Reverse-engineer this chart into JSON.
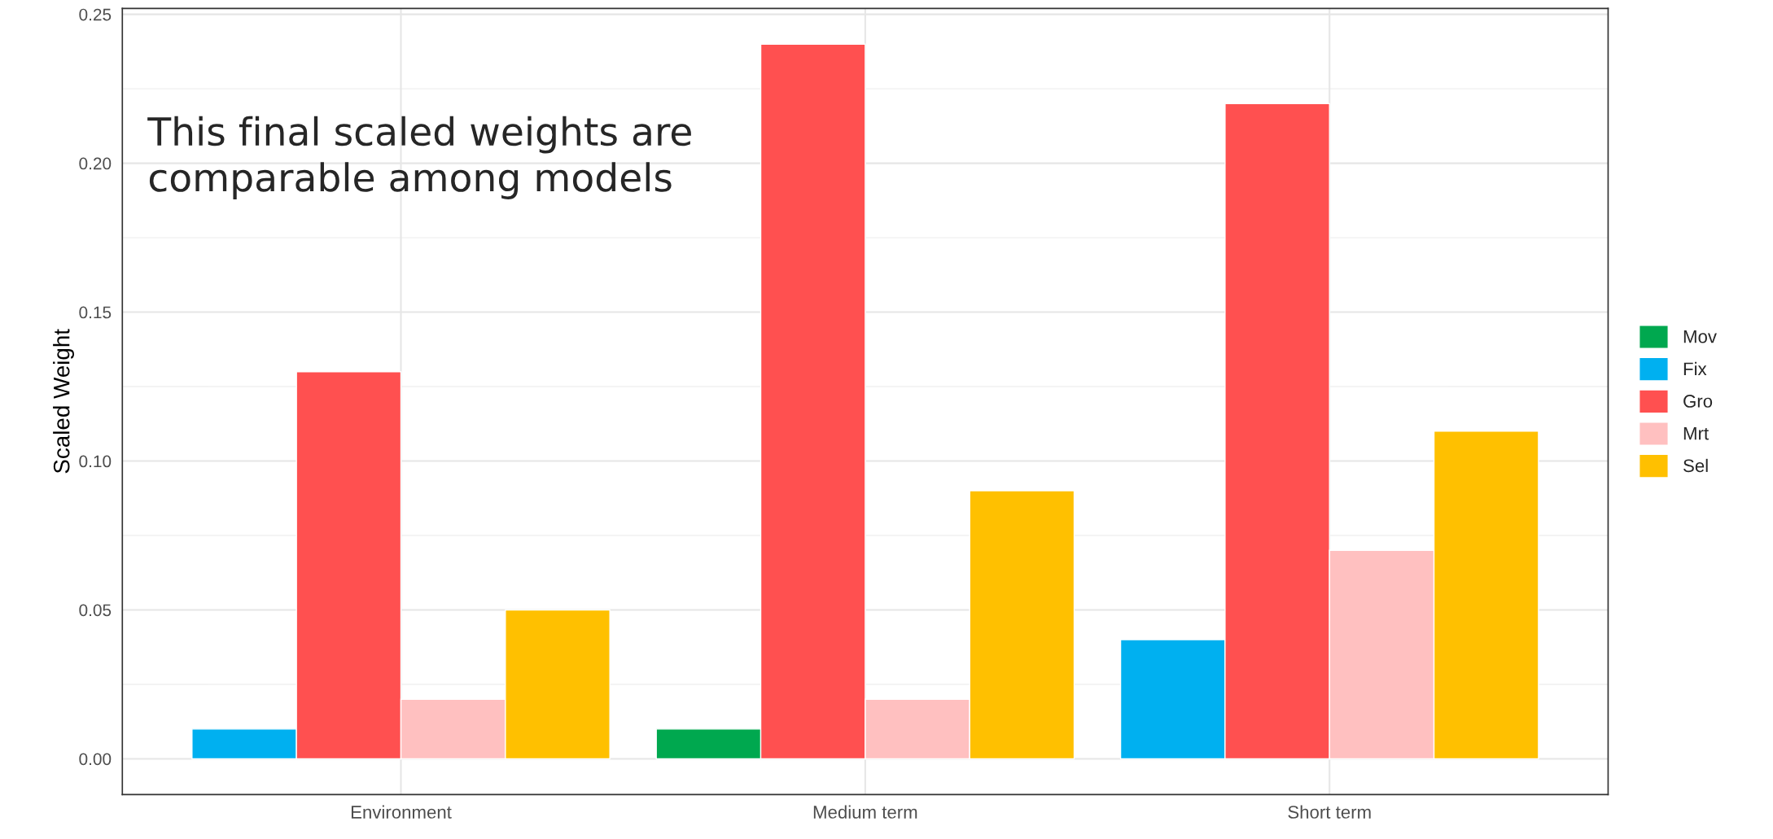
{
  "chart_data": {
    "type": "bar",
    "ylabel": "Scaled Weight",
    "categories": [
      "Environment",
      "Medium term",
      "Short term"
    ],
    "series": [
      {
        "name": "Mov",
        "color": "#00a84f",
        "values": [
          null,
          0.01,
          null
        ]
      },
      {
        "name": "Fix",
        "color": "#00b0f0",
        "values": [
          0.01,
          null,
          0.04
        ]
      },
      {
        "name": "Gro",
        "color": "#ff5050",
        "values": [
          0.13,
          0.24,
          0.22
        ]
      },
      {
        "name": "Mrt",
        "color": "#ffc0c0",
        "values": [
          0.02,
          0.02,
          0.07
        ]
      },
      {
        "name": "Sel",
        "color": "#ffc000",
        "values": [
          0.05,
          0.09,
          0.11
        ]
      }
    ],
    "ylim": [
      -0.012,
      0.252
    ],
    "yticks": [
      {
        "value": 0,
        "label": "0.00"
      },
      {
        "value": 0.05,
        "label": "0.05"
      },
      {
        "value": 0.1,
        "label": "0.10"
      },
      {
        "value": 0.15,
        "label": "0.15"
      },
      {
        "value": 0.2,
        "label": "0.20"
      },
      {
        "value": 0.25,
        "label": "0.25"
      }
    ],
    "annotations": [
      "This final scaled weights are\ncomparable among models"
    ],
    "grid": true,
    "legend": "right"
  }
}
